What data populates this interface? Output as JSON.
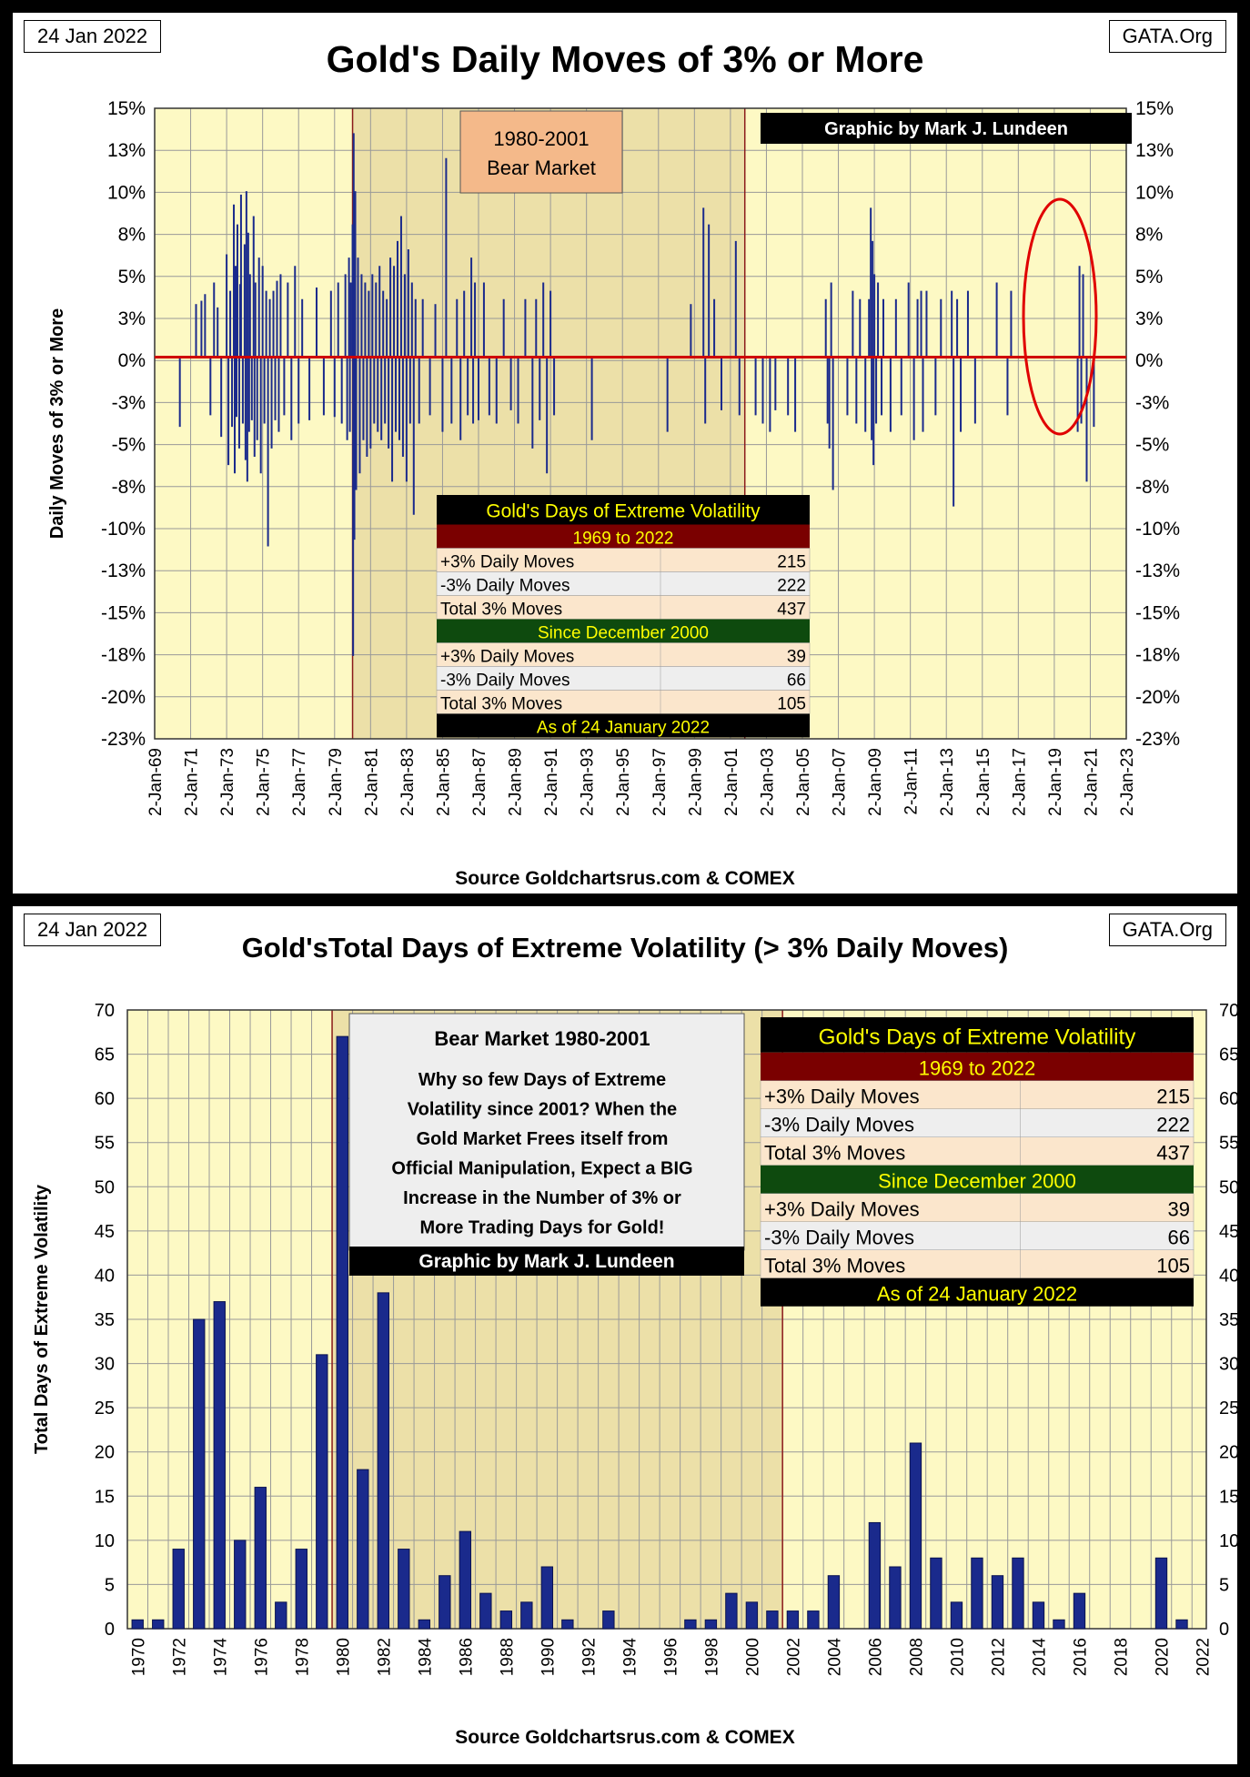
{
  "top_chart": {
    "date_tag": "24 Jan 2022",
    "site_tag": "GATA.Org",
    "title": "Gold's Daily Moves of 3% or More",
    "credit": "Graphic by Mark J. Lundeen",
    "bear_label": [
      "1980-2001",
      "Bear Market"
    ],
    "source": "Source Goldchartsrus.com & COMEX",
    "ylabel": "Daily Moves of 3% or More",
    "y_ticks": [
      "15%",
      "13%",
      "10%",
      "8%",
      "5%",
      "3%",
      "0%",
      "-3%",
      "-5%",
      "-8%",
      "-10%",
      "-13%",
      "-15%",
      "-18%",
      "-20%",
      "-23%"
    ],
    "x_ticks": [
      "2-Jan-69",
      "2-Jan-71",
      "2-Jan-73",
      "2-Jan-75",
      "2-Jan-77",
      "2-Jan-79",
      "2-Jan-81",
      "2-Jan-83",
      "2-Jan-85",
      "2-Jan-87",
      "2-Jan-89",
      "2-Jan-91",
      "2-Jan-93",
      "2-Jan-95",
      "2-Jan-97",
      "2-Jan-99",
      "2-Jan-01",
      "2-Jan-03",
      "2-Jan-05",
      "2-Jan-07",
      "2-Jan-09",
      "2-Jan-11",
      "2-Jan-13",
      "2-Jan-15",
      "2-Jan-17",
      "2-Jan-19",
      "2-Jan-21",
      "2-Jan-23"
    ],
    "table": {
      "header": "Gold's Days of Extreme Volatility",
      "sec1": "1969 to 2022",
      "rows1": [
        [
          "+3% Daily Moves",
          "215"
        ],
        [
          "-3% Daily Moves",
          "222"
        ],
        [
          "Total 3% Moves",
          "437"
        ]
      ],
      "sec2": "Since December 2000",
      "rows2": [
        [
          "+3% Daily Moves",
          "39"
        ],
        [
          "-3% Daily Moves",
          "66"
        ],
        [
          "Total 3% Moves",
          "105"
        ]
      ],
      "footer": "As of 24 January 2022"
    }
  },
  "bottom_chart": {
    "date_tag": "24 Jan 2022",
    "site_tag": "GATA.Org",
    "title": "Gold'sTotal Days of Extreme Volatility (> 3% Daily Moves)",
    "ylabel": "Total Days of Extreme Volatility",
    "source": "Source Goldchartsrus.com & COMEX",
    "y_ticks": [
      "70",
      "65",
      "60",
      "55",
      "50",
      "45",
      "40",
      "35",
      "30",
      "25",
      "20",
      "15",
      "10",
      "5",
      "0"
    ],
    "note_title": "Bear Market 1980-2001",
    "note_lines": [
      "Why so few Days of Extreme",
      "Volatility since 2001?  When the",
      "Gold Market Frees itself from",
      "Official Manipulation, Expect a BIG",
      "Increase in the Number of 3% or",
      "More Trading Days for Gold!"
    ],
    "credit": "Graphic by Mark J. Lundeen",
    "table": {
      "header": "Gold's Days of Extreme Volatility",
      "sec1": "1969 to 2022",
      "rows1": [
        [
          "+3% Daily Moves",
          "215"
        ],
        [
          "-3% Daily Moves",
          "222"
        ],
        [
          "Total 3% Moves",
          "437"
        ]
      ],
      "sec2": "Since December 2000",
      "rows2": [
        [
          "+3% Daily Moves",
          "39"
        ],
        [
          "-3% Daily Moves",
          "66"
        ],
        [
          "Total 3% Moves",
          "105"
        ]
      ],
      "footer": "As of 24 January 2022"
    }
  },
  "colors": {
    "bar": "#1a2a8c",
    "zero_line": "#d00000",
    "plot_bg": "#fdf9c4",
    "bear_bg": "#ece0a8",
    "table_red": "#7a0000",
    "table_green": "#0e4a0e",
    "cell_peach": "#fbe6cc"
  },
  "chart_data": [
    {
      "type": "bar",
      "title": "Gold's Daily Moves of 3% or More",
      "ylabel": "Daily Moves of 3% or More",
      "ylim": [
        -23,
        15
      ],
      "grid": true,
      "spikes": [
        [
          1970.4,
          -4.2
        ],
        [
          1971.3,
          3.2
        ],
        [
          1971.6,
          3.4
        ],
        [
          1971.8,
          3.8
        ],
        [
          1972.1,
          -3.5
        ],
        [
          1972.3,
          4.5
        ],
        [
          1972.5,
          3.0
        ],
        [
          1972.7,
          -4.8
        ],
        [
          1973.0,
          6.2
        ],
        [
          1973.1,
          -6.5
        ],
        [
          1973.2,
          4.0
        ],
        [
          1973.3,
          -4.2
        ],
        [
          1973.4,
          9.2
        ],
        [
          1973.45,
          -7.0
        ],
        [
          1973.5,
          5.5
        ],
        [
          1973.55,
          -3.6
        ],
        [
          1973.6,
          8.0
        ],
        [
          1973.7,
          -5.5
        ],
        [
          1973.75,
          4.4
        ],
        [
          1973.8,
          9.8
        ],
        [
          1973.9,
          -4.0
        ],
        [
          1974.0,
          6.8
        ],
        [
          1974.05,
          -6.2
        ],
        [
          1974.1,
          10.0
        ],
        [
          1974.15,
          -7.5
        ],
        [
          1974.2,
          7.5
        ],
        [
          1974.25,
          -4.5
        ],
        [
          1974.3,
          5.0
        ],
        [
          1974.4,
          -3.8
        ],
        [
          1974.5,
          8.5
        ],
        [
          1974.55,
          -6.0
        ],
        [
          1974.6,
          4.5
        ],
        [
          1974.7,
          -5.0
        ],
        [
          1974.8,
          6.0
        ],
        [
          1974.9,
          -7.0
        ],
        [
          1975.0,
          5.5
        ],
        [
          1975.1,
          -4.0
        ],
        [
          1975.2,
          4.0
        ],
        [
          1975.3,
          -11.4
        ],
        [
          1975.4,
          3.5
        ],
        [
          1975.5,
          -5.5
        ],
        [
          1975.6,
          4.0
        ],
        [
          1975.7,
          -3.8
        ],
        [
          1975.8,
          4.6
        ],
        [
          1975.9,
          -4.5
        ],
        [
          1976.0,
          5.0
        ],
        [
          1976.2,
          -3.5
        ],
        [
          1976.4,
          4.5
        ],
        [
          1976.6,
          -5.0
        ],
        [
          1976.8,
          5.5
        ],
        [
          1977.0,
          -4.0
        ],
        [
          1977.2,
          3.5
        ],
        [
          1977.6,
          -3.8
        ],
        [
          1978.0,
          4.2
        ],
        [
          1978.4,
          -3.5
        ],
        [
          1978.8,
          4.0
        ],
        [
          1979.0,
          -3.6
        ],
        [
          1979.2,
          4.5
        ],
        [
          1979.4,
          -4.0
        ],
        [
          1979.6,
          5.0
        ],
        [
          1979.7,
          -5.0
        ],
        [
          1979.8,
          6.0
        ],
        [
          1979.85,
          -4.5
        ],
        [
          1979.9,
          4.5
        ],
        [
          1980.0,
          8.0
        ],
        [
          1980.03,
          -18.0
        ],
        [
          1980.06,
          13.5
        ],
        [
          1980.1,
          -11.0
        ],
        [
          1980.15,
          10.0
        ],
        [
          1980.2,
          -8.0
        ],
        [
          1980.3,
          6.0
        ],
        [
          1980.4,
          -7.0
        ],
        [
          1980.5,
          5.0
        ],
        [
          1980.6,
          -5.0
        ],
        [
          1980.7,
          4.5
        ],
        [
          1980.8,
          -6.0
        ],
        [
          1980.9,
          4.0
        ],
        [
          1981.0,
          -5.5
        ],
        [
          1981.1,
          5.0
        ],
        [
          1981.2,
          -4.0
        ],
        [
          1981.3,
          4.5
        ],
        [
          1981.4,
          -4.5
        ],
        [
          1981.5,
          5.5
        ],
        [
          1981.6,
          -5.0
        ],
        [
          1981.7,
          4.0
        ],
        [
          1981.8,
          -4.0
        ],
        [
          1981.9,
          3.5
        ],
        [
          1982.0,
          -5.5
        ],
        [
          1982.1,
          6.0
        ],
        [
          1982.2,
          -7.5
        ],
        [
          1982.3,
          5.5
        ],
        [
          1982.4,
          -4.5
        ],
        [
          1982.5,
          7.0
        ],
        [
          1982.6,
          -5.0
        ],
        [
          1982.7,
          8.5
        ],
        [
          1982.8,
          -6.0
        ],
        [
          1982.9,
          5.0
        ],
        [
          1983.0,
          -7.5
        ],
        [
          1983.1,
          6.5
        ],
        [
          1983.2,
          -4.0
        ],
        [
          1983.3,
          4.5
        ],
        [
          1983.4,
          -9.5
        ],
        [
          1983.5,
          3.5
        ],
        [
          1983.7,
          -4.0
        ],
        [
          1983.9,
          3.5
        ],
        [
          1984.3,
          -3.5
        ],
        [
          1984.6,
          3.2
        ],
        [
          1985.0,
          -4.5
        ],
        [
          1985.2,
          12.0
        ],
        [
          1985.5,
          -4.0
        ],
        [
          1985.8,
          3.5
        ],
        [
          1986.0,
          -5.0
        ],
        [
          1986.2,
          4.0
        ],
        [
          1986.4,
          -3.5
        ],
        [
          1986.6,
          6.0
        ],
        [
          1986.7,
          -4.0
        ],
        [
          1986.8,
          4.5
        ],
        [
          1987.0,
          -3.8
        ],
        [
          1987.3,
          4.5
        ],
        [
          1987.6,
          -3.5
        ],
        [
          1988.0,
          -4.0
        ],
        [
          1988.4,
          3.5
        ],
        [
          1988.8,
          -3.2
        ],
        [
          1989.2,
          -4.0
        ],
        [
          1989.6,
          3.5
        ],
        [
          1990.0,
          -5.5
        ],
        [
          1990.2,
          3.5
        ],
        [
          1990.4,
          -3.8
        ],
        [
          1990.6,
          4.5
        ],
        [
          1990.8,
          -7.0
        ],
        [
          1991.0,
          4.0
        ],
        [
          1991.2,
          -3.5
        ],
        [
          1993.3,
          -5.0
        ],
        [
          1997.5,
          -4.5
        ],
        [
          1998.8,
          3.2
        ],
        [
          1999.5,
          9.0
        ],
        [
          1999.6,
          -4.0
        ],
        [
          1999.8,
          8.0
        ],
        [
          2000.1,
          3.5
        ],
        [
          2000.5,
          -3.2
        ],
        [
          2001.3,
          7.0
        ],
        [
          2001.5,
          -3.5
        ],
        [
          2002.4,
          -3.5
        ],
        [
          2002.8,
          -4.0
        ],
        [
          2003.2,
          -4.5
        ],
        [
          2003.5,
          -3.2
        ],
        [
          2004.2,
          -3.5
        ],
        [
          2004.6,
          -4.5
        ],
        [
          2006.3,
          3.5
        ],
        [
          2006.4,
          -4.0
        ],
        [
          2006.5,
          -5.5
        ],
        [
          2006.6,
          4.5
        ],
        [
          2006.7,
          -8.0
        ],
        [
          2007.5,
          -3.5
        ],
        [
          2007.8,
          4.0
        ],
        [
          2008.0,
          -4.0
        ],
        [
          2008.2,
          3.5
        ],
        [
          2008.5,
          -4.5
        ],
        [
          2008.7,
          3.5
        ],
        [
          2008.8,
          9.0
        ],
        [
          2008.85,
          -5.0
        ],
        [
          2008.9,
          7.0
        ],
        [
          2008.95,
          -6.5
        ],
        [
          2009.0,
          5.0
        ],
        [
          2009.1,
          -4.0
        ],
        [
          2009.2,
          4.5
        ],
        [
          2009.4,
          -3.5
        ],
        [
          2009.5,
          3.5
        ],
        [
          2009.9,
          -4.5
        ],
        [
          2010.2,
          3.5
        ],
        [
          2010.5,
          -3.5
        ],
        [
          2010.9,
          4.5
        ],
        [
          2011.2,
          -5.0
        ],
        [
          2011.4,
          3.5
        ],
        [
          2011.6,
          4.0
        ],
        [
          2011.7,
          -4.5
        ],
        [
          2011.9,
          4.0
        ],
        [
          2012.4,
          -3.5
        ],
        [
          2012.7,
          3.5
        ],
        [
          2013.3,
          4.0
        ],
        [
          2013.4,
          -9.0
        ],
        [
          2013.6,
          3.5
        ],
        [
          2013.8,
          -4.5
        ],
        [
          2014.2,
          4.0
        ],
        [
          2014.6,
          -4.0
        ],
        [
          2015.8,
          4.5
        ],
        [
          2016.4,
          -3.5
        ],
        [
          2016.6,
          4.0
        ],
        [
          2020.3,
          -4.5
        ],
        [
          2020.4,
          5.5
        ],
        [
          2020.5,
          -4.0
        ],
        [
          2020.6,
          5.0
        ],
        [
          2020.8,
          -7.5
        ],
        [
          2021.2,
          -4.2
        ]
      ]
    },
    {
      "type": "bar",
      "title": "Gold'sTotal Days of Extreme Volatility (> 3% Daily Moves)",
      "ylabel": "Total Days of Extreme Volatility",
      "ylim": [
        0,
        70
      ],
      "grid": true,
      "x_ticks": [
        "1970",
        "1972",
        "1974",
        "1976",
        "1978",
        "1980",
        "1982",
        "1984",
        "1986",
        "1988",
        "1990",
        "1992",
        "1994",
        "1996",
        "1998",
        "2000",
        "2002",
        "2004",
        "2006",
        "2008",
        "2010",
        "2012",
        "2014",
        "2016",
        "2018",
        "2020",
        "2022"
      ],
      "categories": [
        1970,
        1971,
        1972,
        1973,
        1974,
        1975,
        1976,
        1977,
        1978,
        1979,
        1980,
        1981,
        1982,
        1983,
        1984,
        1985,
        1986,
        1987,
        1988,
        1989,
        1990,
        1991,
        1992,
        1993,
        1994,
        1995,
        1996,
        1997,
        1998,
        1999,
        2000,
        2001,
        2002,
        2003,
        2004,
        2005,
        2006,
        2007,
        2008,
        2009,
        2010,
        2011,
        2012,
        2013,
        2014,
        2015,
        2016,
        2017,
        2018,
        2019,
        2020,
        2021,
        2022
      ],
      "values": [
        1,
        1,
        9,
        35,
        37,
        10,
        16,
        3,
        9,
        31,
        67,
        18,
        38,
        9,
        1,
        6,
        11,
        4,
        2,
        3,
        7,
        1,
        0,
        2,
        0,
        0,
        0,
        1,
        1,
        4,
        3,
        2,
        2,
        2,
        6,
        0,
        12,
        7,
        21,
        8,
        3,
        8,
        6,
        8,
        3,
        1,
        4,
        0,
        0,
        0,
        8,
        1,
        0
      ]
    }
  ]
}
